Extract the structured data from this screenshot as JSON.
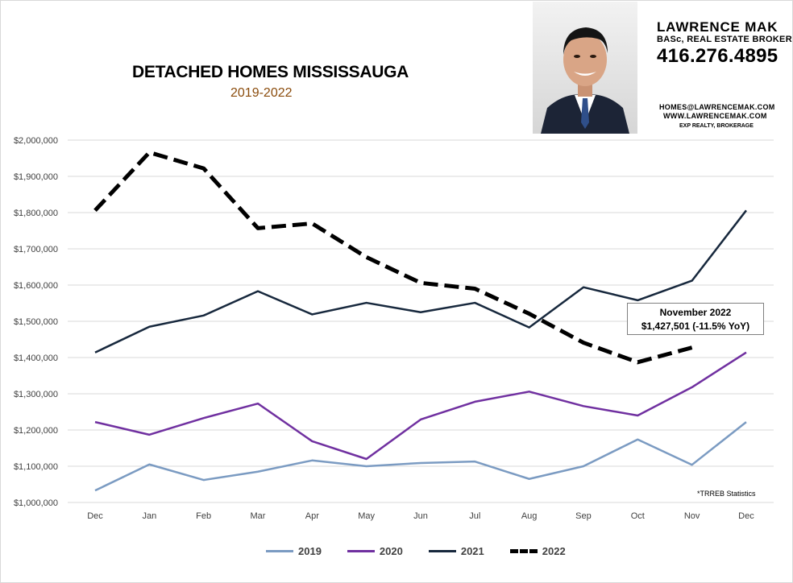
{
  "header": {
    "title": "DETACHED HOMES MISSISSAUGA",
    "subtitle": "2019-2022"
  },
  "agent": {
    "name": "LAWRENCE MAK",
    "title": "BASc, REAL ESTATE BROKER",
    "phone": "416.276.4895",
    "email": "HOMES@LAWRENCEMAK.COM",
    "website": "WWW.LAWRENCEMAK.COM",
    "brokerage": "EXP REALTY, BROKERAGE"
  },
  "annotation": {
    "line1": "November 2022",
    "line2": "$1,427,501  (-11.5%  YoY)"
  },
  "source_note": "*TRREB Statistics",
  "chart_data": {
    "type": "line",
    "categories": [
      "Dec",
      "Jan",
      "Feb",
      "Mar",
      "Apr",
      "May",
      "Jun",
      "Jul",
      "Aug",
      "Sep",
      "Oct",
      "Nov",
      "Dec"
    ],
    "ylim": [
      1000000,
      2000000
    ],
    "yticks": [
      "$1,000,000",
      "$1,100,000",
      "$1,200,000",
      "$1,300,000",
      "$1,400,000",
      "$1,500,000",
      "$1,600,000",
      "$1,700,000",
      "$1,800,000",
      "$1,900,000",
      "$2,000,000"
    ],
    "ytick_values": [
      1000000,
      1100000,
      1200000,
      1300000,
      1400000,
      1500000,
      1600000,
      1700000,
      1800000,
      1900000,
      2000000
    ],
    "grid": true,
    "legend_position": "bottom",
    "series": [
      {
        "name": "2019",
        "color": "#7b9bc2",
        "dashed": false,
        "values": [
          1033000,
          1105000,
          1062000,
          1085000,
          1116000,
          1100000,
          1109000,
          1113000,
          1065000,
          1100000,
          1174000,
          1104000,
          1222000
        ]
      },
      {
        "name": "2020",
        "color": "#7030a0",
        "dashed": false,
        "values": [
          1222000,
          1187000,
          1233000,
          1273000,
          1169000,
          1120000,
          1229000,
          1278000,
          1306000,
          1266000,
          1240000,
          1318000,
          1414000
        ]
      },
      {
        "name": "2021",
        "color": "#17283d",
        "dashed": false,
        "values": [
          1414000,
          1485000,
          1516000,
          1583000,
          1519000,
          1551000,
          1525000,
          1551000,
          1483000,
          1594000,
          1558000,
          1612000,
          1806000
        ]
      },
      {
        "name": "2022",
        "color": "#000000",
        "dashed": true,
        "values": [
          1806000,
          1966000,
          1922000,
          1757000,
          1770000,
          1677000,
          1606000,
          1590000,
          1521000,
          1441000,
          1387000,
          1427501,
          null
        ]
      }
    ]
  }
}
